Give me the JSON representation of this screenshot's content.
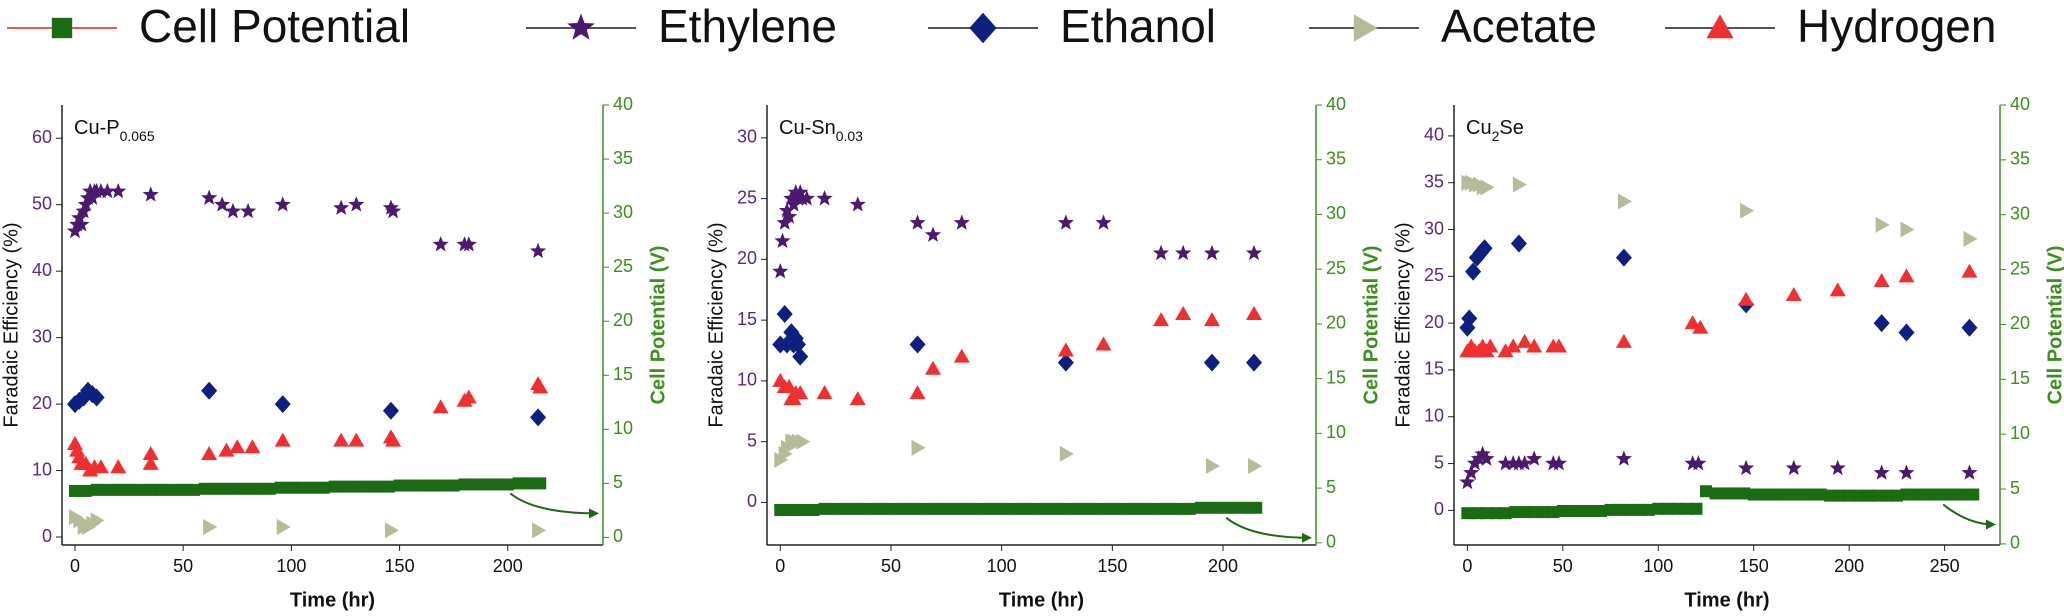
{
  "chart_data": [
    {
      "type": "scatter",
      "annotation": [
        {
          "text": "Cu-P"
        },
        {
          "sub": "0.065"
        }
      ],
      "xlabel": "Time (hr)",
      "ylabel": "Faradaic Efficiency (%)",
      "y2label": "Cell Potential (V)",
      "ytick_color": "#5a2a82",
      "y2_color": "#3d8f1f",
      "xlim": [
        -6,
        244
      ],
      "ylim": [
        -1.2,
        65
      ],
      "y2lim": [
        -0.7,
        40
      ],
      "xticks": [
        0,
        50,
        100,
        150,
        200
      ],
      "yticks": [
        0,
        10,
        20,
        30,
        40,
        50,
        60
      ],
      "y2ticks": [
        0,
        5,
        10,
        15,
        20,
        25,
        30,
        35,
        40
      ],
      "series": [
        {
          "name": "Cell Potential",
          "color": "#1b6b14",
          "line_color": "#e8595a",
          "marker": "square",
          "axis": "y2",
          "x": [
            0,
            5,
            10,
            15,
            20,
            25,
            30,
            35,
            40,
            45,
            50,
            55,
            60,
            65,
            70,
            75,
            80,
            85,
            90,
            95,
            100,
            105,
            110,
            115,
            120,
            125,
            130,
            135,
            140,
            145,
            150,
            155,
            160,
            165,
            170,
            175,
            180,
            185,
            190,
            195,
            200,
            205,
            210,
            215
          ],
          "values": [
            4.3,
            4.3,
            4.4,
            4.4,
            4.4,
            4.4,
            4.4,
            4.4,
            4.4,
            4.4,
            4.4,
            4.4,
            4.5,
            4.5,
            4.5,
            4.5,
            4.5,
            4.5,
            4.5,
            4.6,
            4.6,
            4.6,
            4.6,
            4.6,
            4.7,
            4.7,
            4.7,
            4.7,
            4.7,
            4.7,
            4.8,
            4.8,
            4.8,
            4.8,
            4.8,
            4.8,
            4.9,
            4.9,
            4.9,
            4.9,
            4.9,
            5.0,
            5.0,
            5.0
          ]
        },
        {
          "name": "Ethylene",
          "color": "#4b1a6e",
          "marker": "star",
          "x": [
            0,
            1,
            2,
            3,
            4,
            5,
            6,
            7,
            8,
            9,
            10,
            12,
            15,
            20,
            35,
            62,
            68,
            73,
            80,
            96,
            123,
            130,
            146,
            147,
            169,
            180,
            182,
            214
          ],
          "values": [
            46,
            47,
            48,
            47,
            49,
            50,
            51,
            52,
            51,
            52,
            52,
            52,
            52,
            52,
            51.5,
            51,
            50,
            49,
            49,
            50,
            49.5,
            50,
            49.5,
            49,
            44,
            44,
            44,
            43
          ]
        },
        {
          "name": "Ethanol",
          "color": "#0d2080",
          "marker": "diamond",
          "x": [
            0,
            2,
            4,
            6,
            8,
            10,
            62,
            96,
            146,
            214
          ],
          "values": [
            20,
            20.5,
            21,
            22,
            21.5,
            21,
            22,
            20,
            19,
            18
          ]
        },
        {
          "name": "Acetate",
          "color": "#b5bc9a",
          "marker": "triangle-right",
          "x": [
            0,
            2,
            4,
            6,
            8,
            10,
            62,
            96,
            146,
            214
          ],
          "values": [
            3,
            2.5,
            1.5,
            1.5,
            2,
            2.5,
            1.5,
            1.5,
            1,
            1
          ]
        },
        {
          "name": "Hydrogen",
          "color": "#f03030",
          "marker": "triangle-up",
          "x": [
            0,
            1,
            2,
            3,
            5,
            7,
            9,
            12,
            20,
            35,
            35,
            62,
            70,
            75,
            82,
            96,
            123,
            130,
            146,
            147,
            169,
            180,
            182,
            214,
            215
          ],
          "values": [
            14,
            13,
            12,
            11,
            11,
            10,
            10.5,
            10.5,
            10.5,
            12.5,
            11,
            12.5,
            13,
            13.5,
            13.5,
            14.5,
            14.5,
            14.5,
            15,
            14.5,
            19.5,
            20.5,
            21,
            23,
            22.5
          ]
        }
      ]
    },
    {
      "type": "scatter",
      "annotation": [
        {
          "text": "Cu-Sn"
        },
        {
          "sub": "0.03"
        }
      ],
      "xlabel": "Time (hr)",
      "ylabel": "Faradaic Efficiency (%)",
      "y2label": "Cell Potential (V)",
      "ytick_color": "#5a2a82",
      "y2_color": "#3d8f1f",
      "xlim": [
        -6,
        242
      ],
      "ylim": [
        -3.5,
        32.7
      ],
      "y2lim": [
        -0.2,
        40
      ],
      "xticks": [
        0,
        50,
        100,
        150,
        200
      ],
      "yticks": [
        0,
        5,
        10,
        15,
        20,
        25,
        30
      ],
      "y2ticks": [
        0,
        5,
        10,
        15,
        20,
        25,
        30,
        35,
        40
      ],
      "series": [
        {
          "name": "Cell Potential",
          "color": "#1b6b14",
          "line_color": "#e8595a",
          "marker": "square",
          "axis": "y2",
          "x": [
            0,
            5,
            10,
            15,
            20,
            25,
            30,
            35,
            40,
            45,
            50,
            55,
            60,
            65,
            70,
            75,
            80,
            85,
            90,
            95,
            100,
            105,
            110,
            115,
            120,
            125,
            130,
            135,
            140,
            145,
            150,
            155,
            160,
            165,
            170,
            175,
            180,
            185,
            190,
            195,
            200,
            205,
            210,
            215
          ],
          "values": [
            3.0,
            3.0,
            3.0,
            3.0,
            3.1,
            3.1,
            3.1,
            3.1,
            3.1,
            3.1,
            3.1,
            3.1,
            3.1,
            3.1,
            3.1,
            3.1,
            3.1,
            3.1,
            3.1,
            3.1,
            3.1,
            3.1,
            3.1,
            3.1,
            3.1,
            3.1,
            3.1,
            3.1,
            3.1,
            3.1,
            3.1,
            3.1,
            3.1,
            3.1,
            3.1,
            3.1,
            3.1,
            3.1,
            3.2,
            3.2,
            3.2,
            3.2,
            3.2,
            3.2
          ]
        },
        {
          "name": "Ethylene",
          "color": "#4b1a6e",
          "marker": "star",
          "x": [
            0,
            1,
            2,
            3,
            4,
            5,
            6,
            7,
            8,
            9,
            10,
            12,
            20,
            35,
            62,
            69,
            82,
            129,
            146,
            172,
            182,
            195,
            214
          ],
          "values": [
            19,
            21.5,
            23,
            24,
            23.5,
            25,
            24.5,
            25.5,
            25,
            25.5,
            25,
            25,
            25,
            24.5,
            23,
            22,
            23,
            23,
            23,
            20.5,
            20.5,
            20.5,
            20.5
          ]
        },
        {
          "name": "Ethanol",
          "color": "#0d2080",
          "marker": "diamond",
          "x": [
            0,
            2,
            3,
            5,
            6,
            7,
            8,
            9,
            62,
            129,
            195,
            214
          ],
          "values": [
            13,
            15.5,
            13,
            14,
            13,
            13.5,
            13,
            12,
            13,
            11.5,
            11.5,
            11.5
          ]
        },
        {
          "name": "Acetate",
          "color": "#b5bc9a",
          "marker": "triangle-right",
          "x": [
            0,
            2,
            3,
            5,
            6,
            8,
            10,
            62,
            129,
            195,
            214
          ],
          "values": [
            3.5,
            4,
            4.5,
            5,
            5,
            5,
            5,
            4.5,
            4,
            3,
            3
          ]
        },
        {
          "name": "Hydrogen",
          "color": "#f03030",
          "marker": "triangle-up",
          "x": [
            0,
            2,
            4,
            5,
            6,
            7,
            9,
            20,
            35,
            62,
            69,
            82,
            129,
            146,
            172,
            182,
            195,
            214
          ],
          "values": [
            10,
            9.5,
            9.5,
            8.5,
            8.5,
            9,
            9,
            9,
            8.5,
            9,
            11,
            12,
            12.5,
            13,
            15,
            15.5,
            15,
            15.5
          ]
        }
      ]
    },
    {
      "type": "scatter",
      "annotation": [
        {
          "text": "Cu"
        },
        {
          "sub": "2"
        },
        {
          "text": "Se"
        }
      ],
      "xlabel": "Time (hr)",
      "ylabel": "Faradaic Efficiency (%)",
      "y2label": "Cell Potential (V)",
      "ytick_color": "#5a2a82",
      "y2_color": "#3d8f1f",
      "xlim": [
        -7,
        279
      ],
      "ylim": [
        -3.7,
        43.3
      ],
      "y2lim": [
        -0.1,
        40
      ],
      "xticks": [
        0,
        50,
        100,
        150,
        200,
        250
      ],
      "yticks": [
        0,
        5,
        10,
        15,
        20,
        25,
        30,
        35,
        40
      ],
      "y2ticks": [
        0,
        5,
        10,
        15,
        20,
        25,
        30,
        35,
        40
      ],
      "series": [
        {
          "name": "Cell Potential",
          "color": "#1b6b14",
          "line_color": "#e8595a",
          "marker": "square",
          "axis": "y2",
          "x": [
            0,
            5,
            10,
            15,
            20,
            25,
            30,
            35,
            40,
            45,
            50,
            55,
            60,
            65,
            70,
            75,
            80,
            85,
            90,
            95,
            100,
            105,
            110,
            115,
            120,
            125,
            130,
            135,
            140,
            145,
            150,
            155,
            160,
            165,
            170,
            175,
            180,
            185,
            190,
            195,
            200,
            205,
            210,
            215,
            220,
            225,
            230,
            235,
            240,
            245,
            250,
            255,
            260,
            265
          ],
          "values": [
            2.8,
            2.8,
            2.8,
            2.8,
            2.8,
            2.9,
            2.9,
            2.9,
            2.9,
            2.9,
            3.0,
            3.0,
            3.0,
            3.0,
            3.0,
            3.1,
            3.1,
            3.1,
            3.1,
            3.1,
            3.2,
            3.2,
            3.2,
            3.2,
            3.2,
            4.8,
            4.6,
            4.6,
            4.6,
            4.6,
            4.5,
            4.5,
            4.5,
            4.5,
            4.5,
            4.5,
            4.5,
            4.5,
            4.4,
            4.4,
            4.4,
            4.4,
            4.4,
            4.4,
            4.4,
            4.4,
            4.5,
            4.5,
            4.5,
            4.5,
            4.5,
            4.5,
            4.5,
            4.5
          ]
        },
        {
          "name": "Ethylene",
          "color": "#4b1a6e",
          "marker": "star",
          "x": [
            0,
            2,
            4,
            6,
            8,
            10,
            20,
            24,
            27,
            30,
            35,
            45,
            48,
            82,
            118,
            121,
            146,
            171,
            194,
            217,
            230,
            263
          ],
          "values": [
            3,
            4,
            5,
            5.5,
            6,
            5.5,
            5,
            5,
            5,
            5,
            5.5,
            5,
            5,
            5.5,
            5,
            5,
            4.5,
            4.5,
            4.5,
            4,
            4,
            4
          ]
        },
        {
          "name": "Ethanol",
          "color": "#0d2080",
          "marker": "diamond",
          "x": [
            0,
            1,
            3,
            5,
            7,
            9,
            27,
            82,
            146,
            217,
            230,
            263
          ],
          "values": [
            19.5,
            20.5,
            25.5,
            27,
            27.5,
            28,
            28.5,
            27,
            22,
            20,
            19,
            19.5
          ]
        },
        {
          "name": "Acetate",
          "color": "#b5bc9a",
          "marker": "triangle-right",
          "x": [
            0,
            2,
            4,
            6,
            8,
            10,
            27,
            82,
            146,
            217,
            230,
            263
          ],
          "values": [
            35,
            35,
            34.8,
            34.8,
            34.5,
            34.5,
            34.8,
            33,
            32,
            30.5,
            30,
            29
          ]
        },
        {
          "name": "Hydrogen",
          "color": "#f03030",
          "marker": "triangle-up",
          "x": [
            0,
            2,
            4,
            6,
            8,
            10,
            12,
            20,
            24,
            30,
            35,
            45,
            48,
            82,
            118,
            122,
            146,
            171,
            194,
            217,
            230,
            263
          ],
          "values": [
            17,
            17.5,
            17,
            17,
            17.5,
            17,
            17.5,
            17,
            17.5,
            18,
            17.5,
            17.5,
            17.5,
            18,
            20,
            19.5,
            22.5,
            23,
            23.5,
            24.5,
            25,
            25.5
          ]
        }
      ]
    }
  ]
}
